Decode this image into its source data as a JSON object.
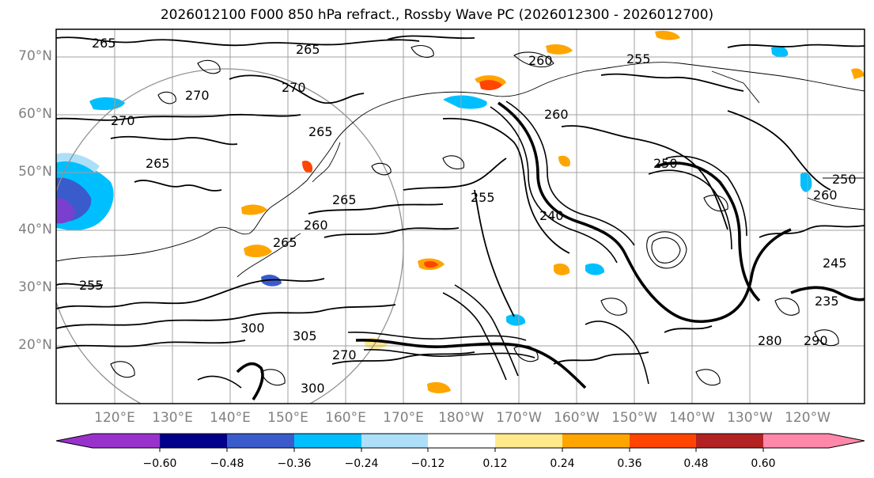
{
  "title": "2026012100 F000 850 hPa refract., Rossby Wave PC (2026012300 - 2026012700)",
  "lat_labels": [
    "70°N",
    "60°N",
    "50°N",
    "40°N",
    "30°N",
    "20°N"
  ],
  "lon_labels": [
    "120°E",
    "130°E",
    "140°E",
    "150°E",
    "160°E",
    "170°E",
    "180°W",
    "170°W",
    "160°W",
    "150°W",
    "140°W",
    "130°W",
    "120°W"
  ],
  "contour_labels": [
    "265",
    "265",
    "270",
    "270",
    "270",
    "260",
    "255",
    "265",
    "265",
    "265",
    "260",
    "265",
    "260",
    "255",
    "240",
    "255",
    "250",
    "260",
    "250",
    "300",
    "305",
    "300",
    "270",
    "280",
    "290",
    "235",
    "245"
  ],
  "colorbar": {
    "ticks": [
      "−0.60",
      "−0.48",
      "−0.36",
      "−0.24",
      "−0.12",
      "0.12",
      "0.24",
      "0.36",
      "0.48",
      "0.60"
    ],
    "colors": [
      "#9932CC",
      "#00008B",
      "#3A5BCB",
      "#00BFFF",
      "#ADDFF8",
      "#FFFFFF",
      "#FFE98A",
      "#FFA500",
      "#FF4500",
      "#B22222",
      "#FF88AA"
    ]
  }
}
